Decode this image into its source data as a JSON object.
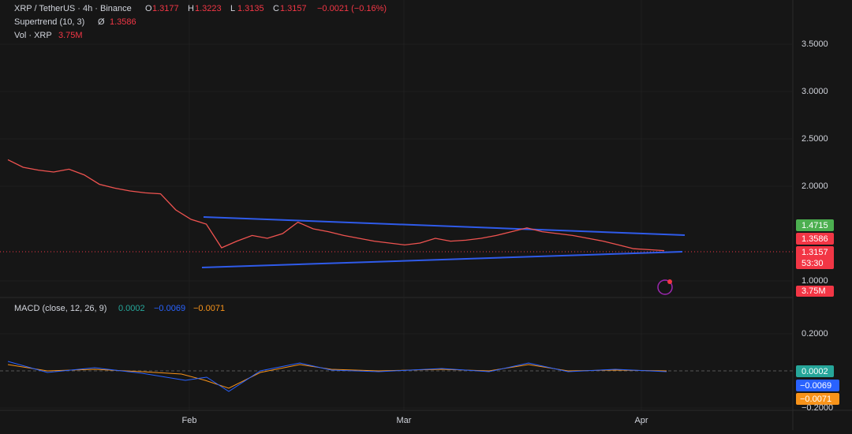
{
  "header": {
    "symbol": "XRP / TetherUS · 4h · Binance",
    "ohlc": [
      {
        "label": "O",
        "value": "1.3177"
      },
      {
        "label": "H",
        "value": "1.3223"
      },
      {
        "label": "L",
        "value": "1.3135"
      },
      {
        "label": "C",
        "value": "1.3157"
      }
    ],
    "change": "−0.0021 (−0.16%)"
  },
  "indicators": {
    "supertrend": {
      "name": "Supertrend (10, 3)",
      "symbol": "Ø",
      "value": "1.3586"
    },
    "volume": {
      "name": "Vol · XRP",
      "value": "3.75M"
    }
  },
  "price_axis": {
    "ticks": [
      {
        "value": 3.5,
        "label": "3.5000"
      },
      {
        "value": 3.0,
        "label": "3.0000"
      },
      {
        "value": 2.5,
        "label": "2.5000"
      },
      {
        "value": 2.0,
        "label": "2.0000"
      },
      {
        "value": 1.0,
        "label": "1.0000"
      }
    ],
    "labels": {
      "upper_trendline": "1.4715",
      "supertrend": "1.3586",
      "last_price": "1.3157",
      "countdown": "53:30",
      "volume": "3.75M"
    }
  },
  "price_path": [
    2.28,
    2.2,
    2.17,
    2.15,
    2.18,
    2.12,
    2.02,
    1.98,
    1.95,
    1.93,
    1.92,
    1.75,
    1.65,
    1.6,
    1.35,
    1.42,
    1.48,
    1.45,
    1.5,
    1.62,
    1.55,
    1.52,
    1.48,
    1.45,
    1.42,
    1.4,
    1.38,
    1.4,
    1.45,
    1.42,
    1.43,
    1.45,
    1.48,
    1.52,
    1.56,
    1.52,
    1.5,
    1.48,
    1.45,
    1.42,
    1.38,
    1.34,
    1.33,
    1.32
  ],
  "macd": {
    "name": "MACD (close, 12, 26, 9)",
    "values": [
      "0.0002",
      "−0.0069",
      "−0.0071"
    ],
    "ticks": [
      {
        "value": 0.2,
        "label": "0.2000"
      },
      {
        "value": -0.2,
        "label": "−0.2000"
      }
    ]
  },
  "time_axis": [
    "Feb",
    "Mar",
    "Apr"
  ]
}
